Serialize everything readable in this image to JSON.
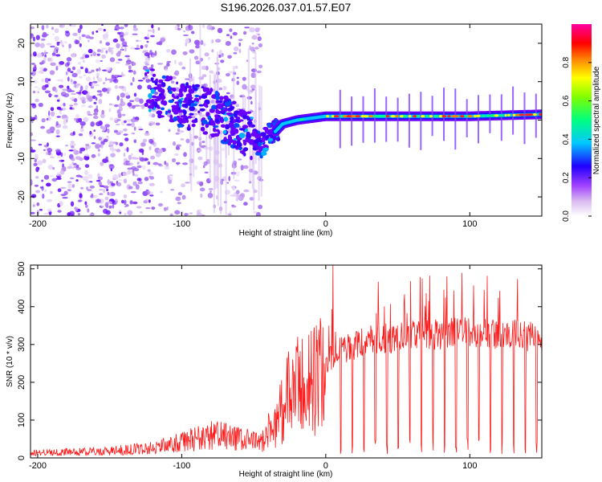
{
  "title": "S196.2026.037.01.57.E07",
  "colors": {
    "axis": "#000000",
    "snr_line": "#ff1a1a",
    "colormap": [
      "#ffffff",
      "#d8b8f0",
      "#a040ff",
      "#6000ff",
      "#0000ff",
      "#00c8ff",
      "#00ff80",
      "#80ff00",
      "#ffff00",
      "#ff8000",
      "#ff0000",
      "#ff00a0"
    ]
  },
  "chart_data": [
    {
      "type": "heatmap",
      "id": "spectrogram",
      "xlabel": "Height of straight line (km)",
      "ylabel": "Frequency (Hz)",
      "xlim": [
        -205,
        150
      ],
      "ylim": [
        -25,
        25
      ],
      "x_ticks": [
        -200,
        -100,
        0,
        100
      ],
      "x_tick_labels": [
        "-200",
        "-100",
        "0",
        "100"
      ],
      "y_ticks": [
        -20,
        -10,
        0,
        10,
        20
      ],
      "y_tick_labels": [
        "-20",
        "-10",
        "0",
        "10",
        "20"
      ],
      "ridge": [
        {
          "x": -125,
          "y": 8
        },
        {
          "x": -110,
          "y": 6
        },
        {
          "x": -100,
          "y": 4
        },
        {
          "x": -90,
          "y": 3
        },
        {
          "x": -80,
          "y": 2
        },
        {
          "x": -70,
          "y": 0
        },
        {
          "x": -60,
          "y": -2
        },
        {
          "x": -50,
          "y": -5
        },
        {
          "x": -45,
          "y": -7
        },
        {
          "x": -40,
          "y": -4
        },
        {
          "x": -35,
          "y": -3
        },
        {
          "x": -30,
          "y": -1
        },
        {
          "x": -20,
          "y": 0
        },
        {
          "x": 0,
          "y": 1
        },
        {
          "x": 50,
          "y": 1
        },
        {
          "x": 100,
          "y": 1
        },
        {
          "x": 150,
          "y": 1.5
        }
      ]
    },
    {
      "type": "colorbar",
      "id": "amplitude-colorbar",
      "label": "Normalized spectral amplitude",
      "range": [
        0,
        1
      ],
      "ticks": [
        0.0,
        0.2,
        0.4,
        0.6,
        0.8
      ],
      "tick_labels": [
        "0.0",
        "0.2",
        "0.4",
        "0.6",
        "0.8"
      ]
    },
    {
      "type": "line",
      "id": "snr",
      "xlabel": "Height of straight line (km)",
      "ylabel": "SNR (10 * v/v)",
      "xlim": [
        -205,
        150
      ],
      "ylim": [
        0,
        510
      ],
      "x_ticks": [
        -200,
        -100,
        0,
        100
      ],
      "x_tick_labels": [
        "-200",
        "-100",
        "0",
        "100"
      ],
      "y_ticks": [
        0,
        100,
        200,
        300,
        400,
        500
      ],
      "y_tick_labels": [
        "0",
        "100",
        "200",
        "300",
        "400",
        "500"
      ],
      "envelope": [
        {
          "x": -205,
          "y": 15
        },
        {
          "x": -150,
          "y": 20
        },
        {
          "x": -120,
          "y": 30
        },
        {
          "x": -100,
          "y": 45
        },
        {
          "x": -80,
          "y": 70
        },
        {
          "x": -60,
          "y": 55
        },
        {
          "x": -45,
          "y": 45
        },
        {
          "x": -35,
          "y": 110
        },
        {
          "x": -25,
          "y": 200
        },
        {
          "x": -10,
          "y": 240
        },
        {
          "x": 0,
          "y": 260
        },
        {
          "x": 10,
          "y": 290
        },
        {
          "x": 30,
          "y": 320
        },
        {
          "x": 60,
          "y": 330
        },
        {
          "x": 100,
          "y": 340
        },
        {
          "x": 150,
          "y": 330
        }
      ],
      "peak": {
        "x": 5,
        "y": 510
      },
      "dropouts_start": 10,
      "dropout_spacing": 8
    }
  ]
}
